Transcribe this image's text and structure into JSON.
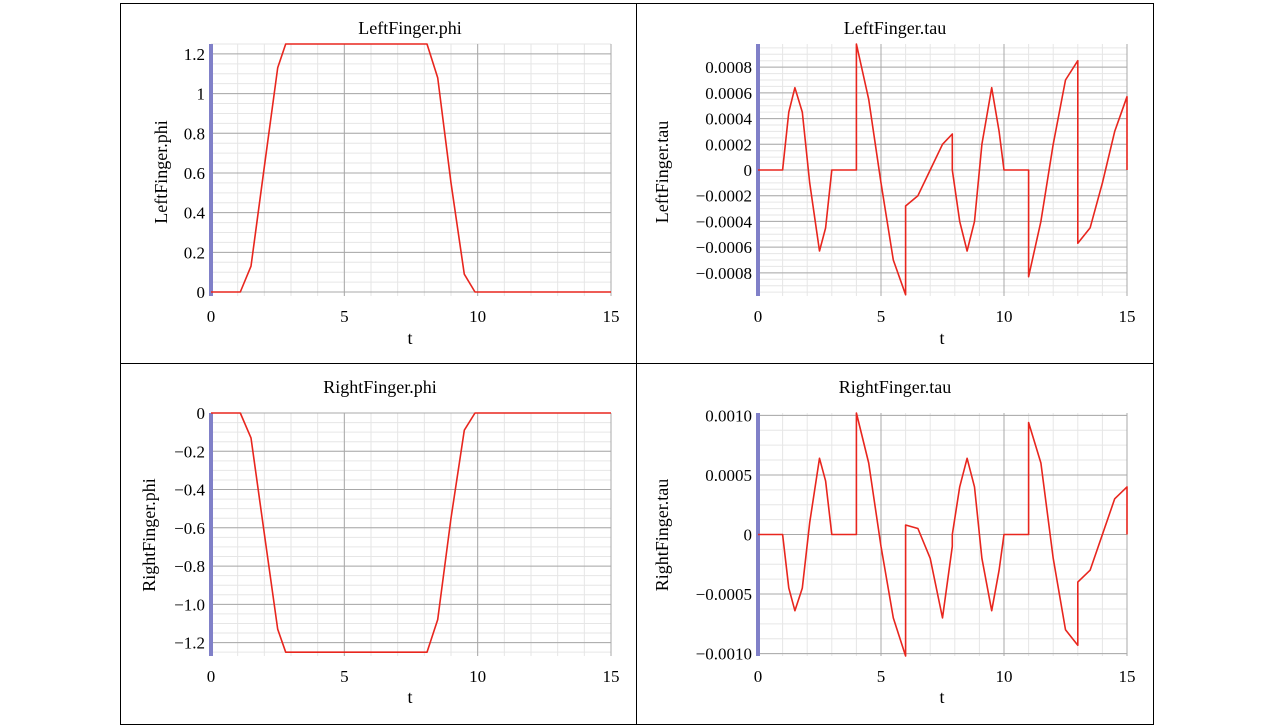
{
  "chart_data": [
    {
      "type": "line",
      "title": "LeftFinger.phi",
      "xlabel": "t",
      "ylabel": "LeftFinger.phi",
      "xlim": [
        0,
        15
      ],
      "ylim": [
        -0.02,
        1.25
      ],
      "xticks": [
        0,
        5,
        10,
        15
      ],
      "xtick_labels": [
        "0",
        "5",
        "10",
        "15"
      ],
      "yticks": [
        0,
        0.2,
        0.4,
        0.6,
        0.8,
        1,
        1.2
      ],
      "ytick_labels": [
        "0",
        "0.2",
        "0.4",
        "0.6",
        "0.8",
        "1",
        "1.2"
      ],
      "grid": true,
      "series": [
        {
          "color": "#e8261e",
          "x": [
            0,
            1.1,
            1.5,
            2.0,
            2.5,
            2.8,
            8.1,
            8.5,
            9.0,
            9.5,
            9.9,
            15
          ],
          "y": [
            0,
            0,
            0.13,
            0.63,
            1.13,
            1.25,
            1.25,
            1.08,
            0.55,
            0.09,
            0,
            0
          ]
        }
      ]
    },
    {
      "type": "line",
      "title": "LeftFinger.tau",
      "xlabel": "t",
      "ylabel": "LeftFinger.tau",
      "xlim": [
        0,
        15
      ],
      "ylim": [
        -0.00098,
        0.00098
      ],
      "xticks": [
        0,
        5,
        10,
        15
      ],
      "xtick_labels": [
        "0",
        "5",
        "10",
        "15"
      ],
      "yticks": [
        -0.0008,
        -0.0006,
        -0.0004,
        -0.0002,
        0,
        0.0002,
        0.0004,
        0.0006,
        0.0008
      ],
      "ytick_labels": [
        "-0.0008",
        "-0.0006",
        "-0.0004",
        "-0.0002",
        "0",
        "0.0002",
        "0.0004",
        "0.0006",
        "0.0008"
      ],
      "grid": true,
      "series": [
        {
          "color": "#e8261e",
          "x": [
            0,
            1.0,
            1.25,
            1.5,
            1.8,
            2.1,
            2.5,
            2.75,
            3.0,
            4.0,
            4.0,
            4.5,
            5.0,
            5.5,
            6.0,
            6.0,
            6.5,
            7.0,
            7.5,
            7.9,
            7.9,
            8.2,
            8.5,
            8.8,
            9.1,
            9.5,
            9.8,
            10.0,
            11.0,
            11.0,
            11.5,
            12.0,
            12.5,
            13.0,
            13.0,
            13.5,
            14.0,
            14.5,
            15.0,
            15.0
          ],
          "y": [
            0,
            0,
            0.00045,
            0.00064,
            0.00045,
            -0.0001,
            -0.00063,
            -0.00045,
            0,
            0,
            0.00098,
            0.00055,
            -0.0001,
            -0.0007,
            -0.00097,
            -0.00028,
            -0.0002,
            0,
            0.0002,
            0.00028,
            0,
            -0.0004,
            -0.00063,
            -0.0004,
            0.0002,
            0.00064,
            0.0003,
            0,
            0,
            -0.00083,
            -0.0004,
            0.0002,
            0.0007,
            0.00085,
            -0.00057,
            -0.00045,
            -0.0001,
            0.0003,
            0.00057,
            0
          ]
        }
      ]
    },
    {
      "type": "line",
      "title": "RightFinger.phi",
      "xlabel": "t",
      "ylabel": "RightFinger.phi",
      "xlim": [
        0,
        15
      ],
      "ylim": [
        -1.27,
        0
      ],
      "xticks": [
        0,
        5,
        10,
        15
      ],
      "xtick_labels": [
        "0",
        "5",
        "10",
        "15"
      ],
      "yticks": [
        -1.2,
        -1.0,
        -0.8,
        -0.6,
        -0.4,
        -0.2,
        0
      ],
      "ytick_labels": [
        "-1.2",
        "-1.0",
        "-0.8",
        "-0.6",
        "-0.4",
        "-0.2",
        "0"
      ],
      "grid": true,
      "series": [
        {
          "color": "#e8261e",
          "x": [
            0,
            1.1,
            1.5,
            2.0,
            2.5,
            2.8,
            8.1,
            8.5,
            9.0,
            9.5,
            9.9,
            15
          ],
          "y": [
            0,
            0,
            -0.13,
            -0.63,
            -1.13,
            -1.25,
            -1.25,
            -1.08,
            -0.55,
            -0.09,
            0,
            0
          ]
        }
      ]
    },
    {
      "type": "line",
      "title": "RightFinger.tau",
      "xlabel": "t",
      "ylabel": "RightFinger.tau",
      "xlim": [
        0,
        15
      ],
      "ylim": [
        -0.00102,
        0.00102
      ],
      "xticks": [
        0,
        5,
        10,
        15
      ],
      "xtick_labels": [
        "0",
        "5",
        "10",
        "15"
      ],
      "yticks": [
        -0.001,
        -0.0005,
        0,
        0.0005,
        0.001
      ],
      "ytick_labels": [
        "-0.0010",
        "-0.0005",
        "0",
        "0.0005",
        "0.0010"
      ],
      "grid": true,
      "series": [
        {
          "color": "#e8261e",
          "x": [
            0,
            1.0,
            1.25,
            1.5,
            1.8,
            2.1,
            2.5,
            2.75,
            3.0,
            4.0,
            4.0,
            4.5,
            5.0,
            5.5,
            6.0,
            6.0,
            6.5,
            7.0,
            7.5,
            7.9,
            7.9,
            8.2,
            8.5,
            8.8,
            9.1,
            9.5,
            9.8,
            10.0,
            11.0,
            11.0,
            11.5,
            12.0,
            12.5,
            13.0,
            13.0,
            13.5,
            14.0,
            14.5,
            15.0,
            15.0
          ],
          "y": [
            0,
            0,
            -0.00045,
            -0.00064,
            -0.00045,
            0.0001,
            0.00064,
            0.00045,
            0,
            0,
            0.00102,
            0.0006,
            -0.0001,
            -0.0007,
            -0.00102,
            8e-05,
            5e-05,
            -0.0002,
            -0.0007,
            -0.0001,
            0,
            0.0004,
            0.00064,
            0.0004,
            -0.0002,
            -0.00064,
            -0.0003,
            0,
            0,
            0.00094,
            0.0006,
            -0.0002,
            -0.0008,
            -0.00093,
            -0.0004,
            -0.0003,
            0,
            0.0003,
            0.0004,
            0
          ]
        }
      ]
    }
  ]
}
